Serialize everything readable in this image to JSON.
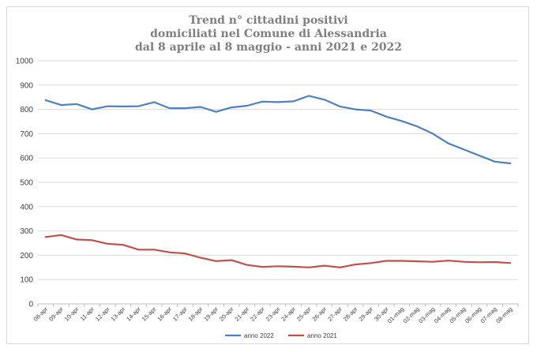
{
  "chart_data": {
    "type": "line",
    "title_lines": [
      "Trend n° cittadini positivi",
      "domiciliati nel Comune di Alessandria",
      "dal 8 aprile al 8 maggio - anni 2021 e 2022"
    ],
    "xlabel": "",
    "ylabel": "",
    "ylim": [
      0,
      1000
    ],
    "yticks": [
      0,
      100,
      200,
      300,
      400,
      500,
      600,
      700,
      800,
      900,
      1000
    ],
    "grid": true,
    "legend_position": "bottom",
    "x": [
      "08-apr",
      "09-apr",
      "10-apr",
      "11-apr",
      "12-apr",
      "13-apr",
      "14-apr",
      "15-apr",
      "16-apr",
      "17-apr",
      "18-apr",
      "19-apr",
      "20-apr",
      "21-apr",
      "22-apr",
      "23-apr",
      "24-apr",
      "25-apr",
      "26-apr",
      "27-apr",
      "28-apr",
      "29-apr",
      "30-apr",
      "01-mag",
      "02-mag",
      "03-mag",
      "04-mag",
      "05-mag",
      "06-mag",
      "07-mag",
      "08-mag"
    ],
    "series": [
      {
        "name": "anno 2022",
        "color": "#4f81bd",
        "values": [
          838,
          818,
          822,
          800,
          813,
          812,
          813,
          830,
          805,
          805,
          810,
          790,
          808,
          815,
          832,
          830,
          833,
          856,
          840,
          812,
          800,
          795,
          770,
          752,
          730,
          700,
          660,
          635,
          610,
          585,
          578
        ]
      },
      {
        "name": "anno 2021",
        "color": "#c0504d",
        "values": [
          275,
          283,
          265,
          262,
          247,
          243,
          223,
          223,
          212,
          207,
          190,
          176,
          180,
          160,
          152,
          155,
          153,
          150,
          157,
          150,
          162,
          168,
          177,
          177,
          175,
          173,
          178,
          173,
          171,
          172,
          168
        ]
      }
    ]
  }
}
